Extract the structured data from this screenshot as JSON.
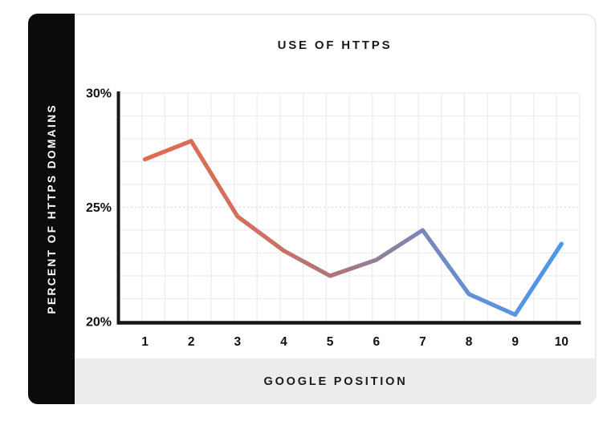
{
  "card": {
    "title": "USE OF HTTPS",
    "sidebar_label": "PERCENT OF HTTPS DOMAINS",
    "footer_label": "GOOGLE POSITION",
    "colors": {
      "sidebar_bg": "#0b0b0b",
      "footer_bg": "#ececec",
      "card_border": "#ebebeb",
      "text": "#1a1a1a"
    }
  },
  "chart_data": {
    "type": "line",
    "title": "USE OF HTTPS",
    "xlabel": "GOOGLE POSITION",
    "ylabel": "PERCENT OF HTTPS DOMAINS",
    "x": [
      1,
      2,
      3,
      4,
      5,
      6,
      7,
      8,
      9,
      10
    ],
    "values": [
      27.1,
      27.9,
      24.6,
      23.1,
      22.0,
      22.7,
      24.0,
      21.2,
      20.3,
      23.4
    ],
    "ylim": [
      20,
      30
    ],
    "yticks": [
      {
        "value": 20,
        "label": "20%"
      },
      {
        "value": 25,
        "label": "25%"
      },
      {
        "value": 30,
        "label": "30%"
      }
    ],
    "xticks": [
      "1",
      "2",
      "3",
      "4",
      "5",
      "6",
      "7",
      "8",
      "9",
      "10"
    ],
    "grid": true,
    "grid_minor_color": "#ededed",
    "grid_major_dashed_value": 25,
    "grid_major_color": "#dcdcdc",
    "axis_color": "#161616",
    "tick_label_color": "#111111",
    "legend": "none",
    "line_width": 5.2,
    "line_gradient": {
      "stops": [
        {
          "offset": 0.0,
          "color": "#E16A52"
        },
        {
          "offset": 0.28,
          "color": "#D0715F"
        },
        {
          "offset": 0.45,
          "color": "#AD7579"
        },
        {
          "offset": 0.58,
          "color": "#8F7F9E"
        },
        {
          "offset": 0.7,
          "color": "#7489C2"
        },
        {
          "offset": 0.82,
          "color": "#5E93DC"
        },
        {
          "offset": 1.0,
          "color": "#4B97EA"
        }
      ]
    }
  }
}
